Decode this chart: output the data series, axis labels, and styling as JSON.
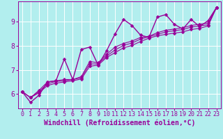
{
  "title": "",
  "xlabel": "Windchill (Refroidissement éolien,°C)",
  "ylabel": "",
  "bg_color": "#b2eeee",
  "grid_color": "#ffffff",
  "line_color": "#990099",
  "xlim": [
    -0.5,
    23.5
  ],
  "ylim": [
    5.4,
    9.85
  ],
  "xticks": [
    0,
    1,
    2,
    3,
    4,
    5,
    6,
    7,
    8,
    9,
    10,
    11,
    12,
    13,
    14,
    15,
    16,
    17,
    18,
    19,
    20,
    21,
    22,
    23
  ],
  "yticks": [
    6,
    7,
    8,
    9
  ],
  "series": [
    [
      6.1,
      5.65,
      5.95,
      6.5,
      6.55,
      7.45,
      6.6,
      7.85,
      7.95,
      7.2,
      7.8,
      8.5,
      9.1,
      8.85,
      8.45,
      8.35,
      9.2,
      9.3,
      8.9,
      8.7,
      9.1,
      8.8,
      9.05,
      9.6
    ],
    [
      6.1,
      5.85,
      6.15,
      6.5,
      6.55,
      6.6,
      6.6,
      6.72,
      7.35,
      7.3,
      7.65,
      7.95,
      8.1,
      8.2,
      8.35,
      8.4,
      8.55,
      8.65,
      8.7,
      8.75,
      8.85,
      8.9,
      8.95,
      9.6
    ],
    [
      6.1,
      5.85,
      6.1,
      6.42,
      6.52,
      6.55,
      6.6,
      6.67,
      7.25,
      7.25,
      7.58,
      7.83,
      8.02,
      8.12,
      8.28,
      8.38,
      8.48,
      8.58,
      8.63,
      8.68,
      8.78,
      8.83,
      8.88,
      9.6
    ],
    [
      6.1,
      5.85,
      6.05,
      6.35,
      6.45,
      6.5,
      6.55,
      6.62,
      7.15,
      7.2,
      7.52,
      7.72,
      7.92,
      8.02,
      8.18,
      8.32,
      8.42,
      8.48,
      8.53,
      8.58,
      8.68,
      8.73,
      8.83,
      9.6
    ]
  ],
  "xlabel_fontsize": 7,
  "tick_fontsize": 6,
  "marker": "D",
  "markersize": 2.5
}
